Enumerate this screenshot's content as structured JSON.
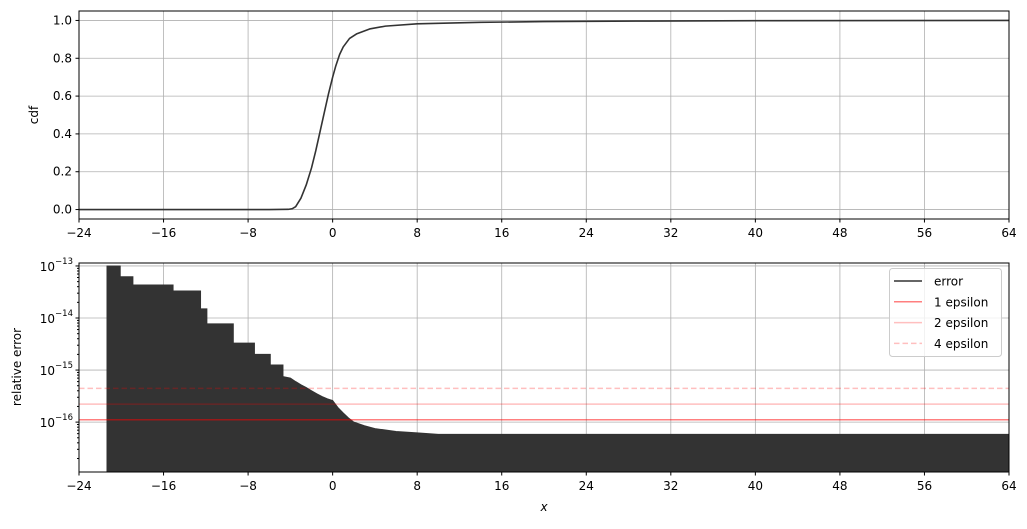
{
  "chart_data": [
    {
      "type": "line",
      "title": "",
      "xlabel": "",
      "ylabel": "cdf",
      "xlim": [
        -24,
        64
      ],
      "ylim": [
        -0.05,
        1.05
      ],
      "yscale": "linear",
      "grid": true,
      "xticks": [
        "−24",
        "−16",
        "−8",
        "0",
        "8",
        "16",
        "24",
        "32",
        "40",
        "48",
        "56",
        "64"
      ],
      "xtick_values": [
        -24,
        -16,
        -8,
        0,
        8,
        16,
        24,
        32,
        40,
        48,
        56,
        64
      ],
      "yticks": [
        "0.0",
        "0.2",
        "0.4",
        "0.6",
        "0.8",
        "1.0"
      ],
      "ytick_values": [
        0,
        0.2,
        0.4,
        0.6,
        0.8,
        1.0
      ],
      "line_color": "#333333",
      "series": [
        {
          "x": [
            -24,
            -6,
            -4.2,
            -3.8,
            -3.5,
            -3.0,
            -2.5,
            -2.0,
            -1.6,
            -1.2,
            -0.8,
            -0.4,
            0,
            0.3,
            0.66,
            1.0,
            1.6,
            2.3,
            3.5,
            5,
            8,
            14,
            20,
            30,
            40,
            64
          ],
          "y": [
            0,
            0,
            0.001,
            0.005,
            0.015,
            0.06,
            0.13,
            0.22,
            0.31,
            0.41,
            0.51,
            0.61,
            0.7,
            0.76,
            0.82,
            0.86,
            0.905,
            0.93,
            0.955,
            0.97,
            0.982,
            0.99,
            0.994,
            0.997,
            0.999,
            1.0
          ]
        }
      ]
    },
    {
      "type": "line",
      "title": "",
      "xlabel": "x",
      "ylabel": "relative error",
      "xlim": [
        -24,
        64
      ],
      "ylim": [
        1.1e-17,
        1.14e-13
      ],
      "yscale": "log",
      "grid": true,
      "xticks": [
        "−24",
        "−16",
        "−8",
        "0",
        "8",
        "16",
        "24",
        "32",
        "40",
        "48",
        "56",
        "64"
      ],
      "xtick_values": [
        -24,
        -16,
        -8,
        0,
        8,
        16,
        24,
        32,
        40,
        48,
        56,
        64
      ],
      "yticks": [
        {
          "base": "10",
          "exp": "−13",
          "value": 1e-13
        },
        {
          "base": "10",
          "exp": "−14",
          "value": 1e-14
        },
        {
          "base": "10",
          "exp": "−15",
          "value": 1e-15
        },
        {
          "base": "10",
          "exp": "−16",
          "value": 1e-16
        }
      ],
      "legend_position": "upper right",
      "series": [
        {
          "name": "error",
          "color": "#333333",
          "style": "solid (dense, filled to 0)",
          "x": [
            -21.35,
            -20.1,
            -20.1,
            -18.9,
            -18.9,
            -15.1,
            -15.1,
            -12.5,
            -12.5,
            -11.9,
            -11.9,
            -9.4,
            -9.4,
            -7.4,
            -7.4,
            -5.9,
            -5.9,
            -4.7,
            -4.7,
            -4.0,
            -3.5,
            -3.0,
            -2.5,
            -2.0,
            -1.5,
            -1.0,
            -0.5,
            0,
            0.5,
            1.0,
            1.5,
            2.0,
            3.0,
            4.0,
            6.0,
            8.0,
            10.0,
            64
          ],
          "y": [
            1e-13,
            1e-13,
            6.2e-14,
            6.2e-14,
            4.3e-14,
            4.3e-14,
            3.3e-14,
            3.3e-14,
            1.5e-14,
            1.5e-14,
            7.7e-15,
            7.7e-15,
            3.3e-15,
            3.3e-15,
            2e-15,
            2e-15,
            1.25e-15,
            1.25e-15,
            7.5e-16,
            7e-16,
            6e-16,
            5.2e-16,
            4.6e-16,
            4e-16,
            3.5e-16,
            3.1e-16,
            2.8e-16,
            2.6e-16,
            1.9e-16,
            1.5e-16,
            1.2e-16,
            1e-16,
            8.5e-17,
            7.5e-17,
            6.6e-17,
            6.2e-17,
            5.8e-17,
            5.8e-17
          ]
        },
        {
          "name": "1 epsilon",
          "color": "#ff0000",
          "alpha": 0.5,
          "style": "solid",
          "y": 1.11e-16
        },
        {
          "name": "2 epsilon",
          "color": "#ff0000",
          "alpha": 0.25,
          "style": "solid",
          "y": 2.22e-16
        },
        {
          "name": "4 epsilon",
          "color": "#ff0000",
          "alpha": 0.25,
          "style": "dashed",
          "y": 4.44e-16
        }
      ]
    }
  ]
}
